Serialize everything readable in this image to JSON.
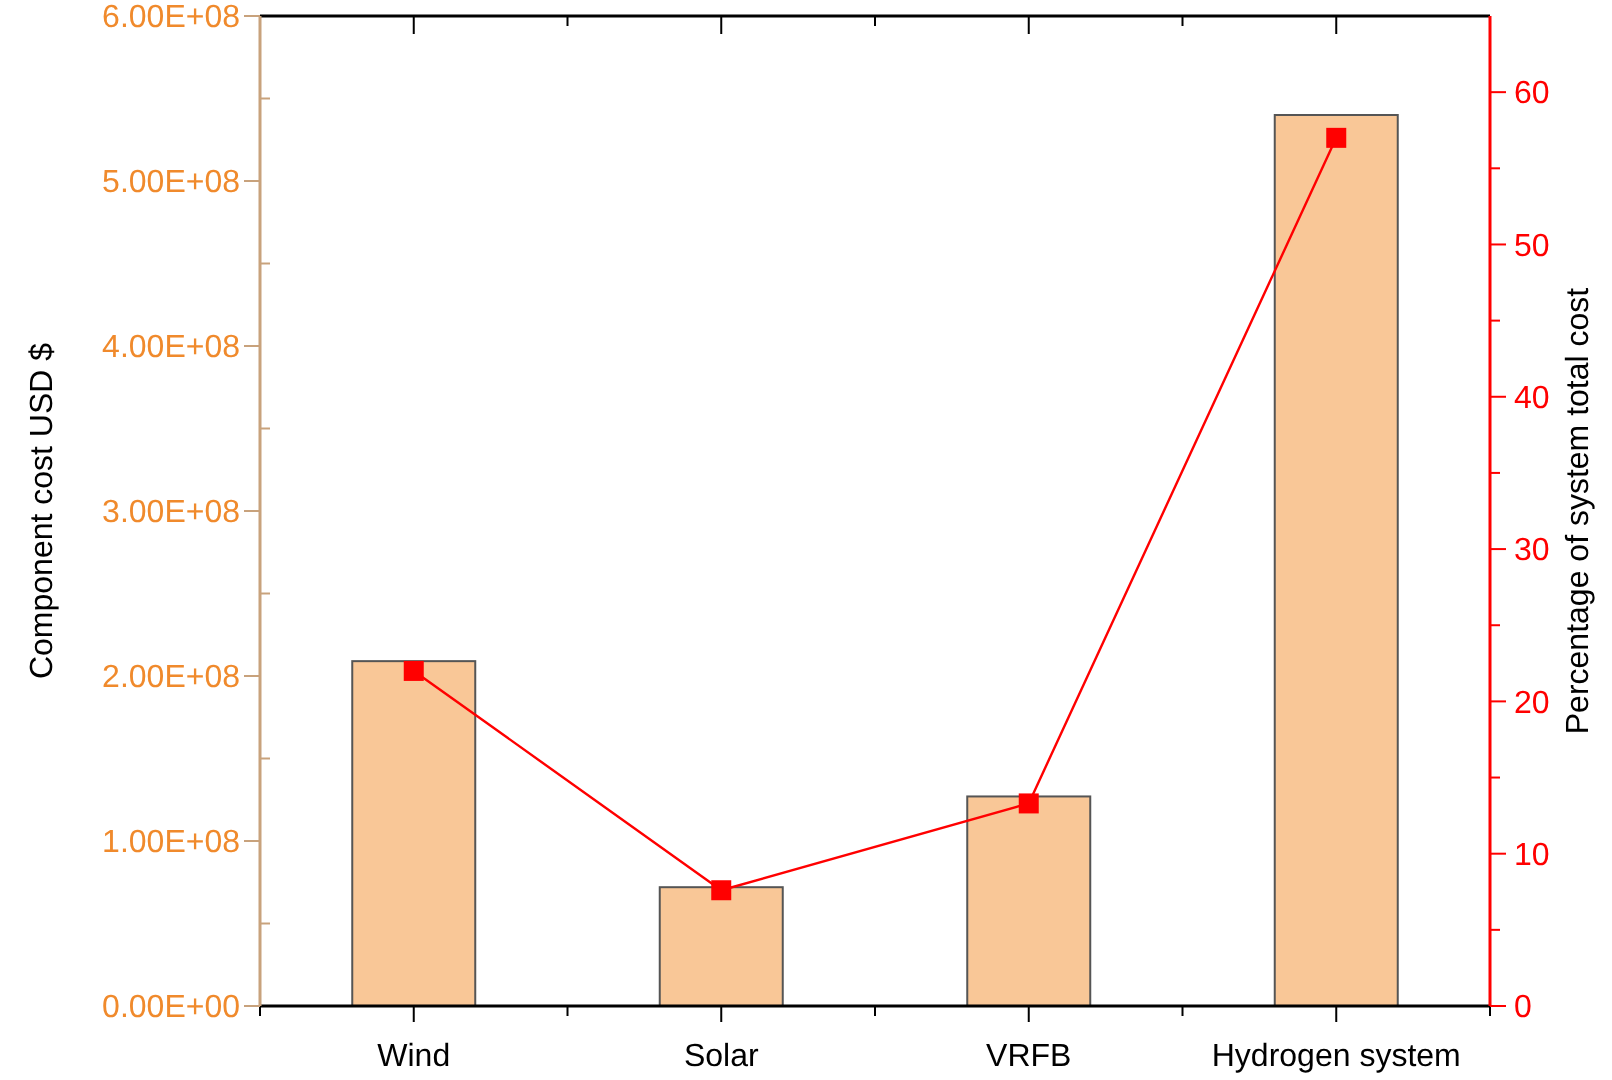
{
  "chart_data": {
    "type": "bar",
    "categories": [
      "Wind",
      "Solar",
      "VRFB",
      "Hydrogen system"
    ],
    "ylabel": "Component cost USD $",
    "y2label": "Percentage of system total cost",
    "series": [
      {
        "color": "#f9c797",
        "values": [
          209000000,
          72000000,
          127000000,
          540000000
        ]
      },
      {
        "type": "line",
        "axis": "y2",
        "color": "#ff0000",
        "marker": "square",
        "values": [
          22.0,
          7.6,
          13.3,
          57
        ]
      }
    ],
    "ylim": [
      0,
      600000000
    ],
    "yticks": [
      {
        "value": 0,
        "label": "0.00E+00"
      },
      {
        "value": 50000000,
        "label": null
      },
      {
        "value": 100000000,
        "label": "1.00E+08"
      },
      {
        "value": 150000000,
        "label": null
      },
      {
        "value": 200000000,
        "label": "2.00E+08"
      },
      {
        "value": 250000000,
        "label": null
      },
      {
        "value": 300000000,
        "label": "3.00E+08"
      },
      {
        "value": 350000000,
        "label": null
      },
      {
        "value": 400000000,
        "label": "4.00E+08"
      },
      {
        "value": 450000000,
        "label": null
      },
      {
        "value": 500000000,
        "label": "5.00E+08"
      },
      {
        "value": 550000000,
        "label": null
      },
      {
        "value": 600000000,
        "label": "6.00E+08"
      }
    ],
    "y2lim": [
      0,
      65
    ],
    "y2ticks": [
      0,
      {
        "value": 5,
        "label": null
      },
      10,
      {
        "value": 15,
        "label": null
      },
      20,
      {
        "value": 25,
        "label": null
      },
      30,
      {
        "value": 35,
        "label": null
      },
      40,
      {
        "value": 45,
        "label": null
      },
      50,
      {
        "value": 55,
        "label": null
      },
      60
    ],
    "grid": false
  }
}
